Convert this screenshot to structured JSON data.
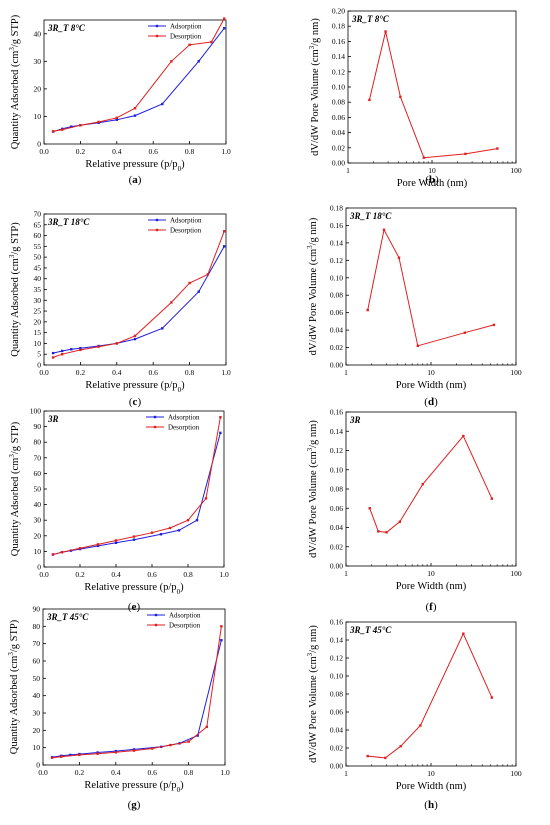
{
  "colors": {
    "adsorption": "#1f1fe0",
    "desorption": "#e01f1f",
    "axis": "#000000"
  },
  "chart_data": [
    {
      "id": "a",
      "type": "line",
      "panel_label": "(a)",
      "annotation": "3R_T 8°C",
      "xlabel": "Relative pressure (p/p0)",
      "ylabel": "Quantity Adsorbed (cm3/g STP)",
      "xlim": [
        0,
        1
      ],
      "ylim": [
        0,
        45
      ],
      "xticks": [
        0.0,
        0.2,
        0.4,
        0.6,
        0.8,
        1.0
      ],
      "xtick_labels": [
        "0.0",
        "0.2",
        "0.4",
        "0.6",
        "0.8",
        "1.0"
      ],
      "yticks": [
        0,
        10,
        20,
        30,
        40
      ],
      "ytick_labels": [
        "0",
        "10",
        "20",
        "30",
        "40"
      ],
      "legend": "top-right",
      "series": [
        {
          "name": "Adsorption",
          "color": "blue",
          "x": [
            0.05,
            0.1,
            0.15,
            0.2,
            0.3,
            0.4,
            0.5,
            0.65,
            0.85,
            0.99
          ],
          "y": [
            4.5,
            5.5,
            6.3,
            6.8,
            7.7,
            8.8,
            10.3,
            14.5,
            30,
            42
          ]
        },
        {
          "name": "Desorption",
          "color": "red",
          "x": [
            0.99,
            0.92,
            0.8,
            0.7,
            0.5,
            0.4,
            0.3,
            0.2,
            0.1,
            0.05
          ],
          "y": [
            45.5,
            37,
            36,
            30,
            13,
            9.5,
            8,
            6.8,
            5.2,
            4.6
          ]
        }
      ]
    },
    {
      "id": "b",
      "type": "line",
      "panel_label": "(b)",
      "annotation": "3R_T 8°C",
      "xlabel": "Pore Width (nm)",
      "ylabel": "dV/dW Pore Volume (cm3/g nm)",
      "xscale": "log",
      "xlim": [
        1,
        100
      ],
      "ylim": [
        0,
        0.2
      ],
      "xticks": [
        1,
        10,
        100
      ],
      "xtick_labels": [
        "1",
        "10",
        "100"
      ],
      "yticks": [
        0,
        0.02,
        0.04,
        0.06,
        0.08,
        0.1,
        0.12,
        0.14,
        0.16,
        0.18,
        0.2
      ],
      "ytick_labels": [
        "0.00",
        "0.02",
        "0.04",
        "0.06",
        "0.08",
        "0.10",
        "0.12",
        "0.14",
        "0.16",
        "0.18",
        "0.20"
      ],
      "series": [
        {
          "color": "red",
          "x": [
            1.8,
            2.8,
            4.2,
            8.0,
            25,
            60
          ],
          "y": [
            0.083,
            0.173,
            0.087,
            0.007,
            0.012,
            0.019
          ]
        }
      ]
    },
    {
      "id": "c",
      "type": "line",
      "panel_label": "(c)",
      "annotation": "3R_T 18°C",
      "xlabel": "Relative pressure (p/p0)",
      "ylabel": "Quantity Adsorbed (cm3/g STP)",
      "xlim": [
        0,
        1
      ],
      "ylim": [
        0,
        70
      ],
      "xticks": [
        0.0,
        0.2,
        0.4,
        0.6,
        0.8,
        1.0
      ],
      "xtick_labels": [
        "0.0",
        "0.2",
        "0.4",
        "0.6",
        "0.8",
        "1.0"
      ],
      "yticks": [
        0,
        5,
        10,
        15,
        20,
        25,
        30,
        35,
        40,
        45,
        50,
        55,
        60,
        65,
        70
      ],
      "ytick_labels": [
        "0",
        "5",
        "10",
        "15",
        "20",
        "25",
        "30",
        "35",
        "40",
        "45",
        "50",
        "55",
        "60",
        "65",
        "70"
      ],
      "legend": "top-right",
      "series": [
        {
          "name": "Adsorption",
          "color": "blue",
          "x": [
            0.05,
            0.1,
            0.15,
            0.2,
            0.3,
            0.4,
            0.5,
            0.65,
            0.85,
            0.99
          ],
          "y": [
            5.5,
            6.5,
            7.3,
            7.8,
            8.8,
            10.0,
            12.0,
            17,
            34,
            55
          ]
        },
        {
          "name": "Desorption",
          "color": "red",
          "x": [
            0.99,
            0.9,
            0.8,
            0.7,
            0.5,
            0.4,
            0.3,
            0.2,
            0.1,
            0.05
          ],
          "y": [
            62,
            42,
            38,
            29,
            13.5,
            10.0,
            8.5,
            7.0,
            5.0,
            3.5
          ]
        }
      ]
    },
    {
      "id": "d",
      "type": "line",
      "panel_label": "(d)",
      "annotation": "3R_T 18°C",
      "xlabel": "Pore Width (nm)",
      "ylabel": "dV/dW Pore Volume (cm3/g nm)",
      "xscale": "log",
      "xlim": [
        1,
        100
      ],
      "ylim": [
        0,
        0.18
      ],
      "xticks": [
        1,
        10,
        100
      ],
      "xtick_labels": [
        "1",
        "10",
        "100"
      ],
      "yticks": [
        0,
        0.02,
        0.04,
        0.06,
        0.08,
        0.1,
        0.12,
        0.14,
        0.16,
        0.18
      ],
      "ytick_labels": [
        "0.00",
        "0.02",
        "0.04",
        "0.06",
        "0.08",
        "0.10",
        "0.12",
        "0.14",
        "0.16",
        "0.18"
      ],
      "series": [
        {
          "color": "red",
          "x": [
            1.8,
            2.8,
            4.2,
            7.0,
            25,
            55
          ],
          "y": [
            0.063,
            0.155,
            0.123,
            0.022,
            0.037,
            0.046
          ]
        }
      ]
    },
    {
      "id": "e",
      "type": "line",
      "panel_label": "(e)",
      "annotation": "3R",
      "xlabel": "Relative pressure (p/p0)",
      "ylabel": "Quantity Adsorbed (cm3/g STP)",
      "xlim": [
        0,
        1
      ],
      "ylim": [
        0,
        100
      ],
      "xticks": [
        0.0,
        0.2,
        0.4,
        0.6,
        0.8,
        1.0
      ],
      "xtick_labels": [
        "0.0",
        "0.2",
        "0.4",
        "0.6",
        "0.8",
        "1.0"
      ],
      "yticks": [
        0,
        10,
        20,
        30,
        40,
        50,
        60,
        70,
        80,
        90,
        100
      ],
      "ytick_labels": [
        "0",
        "10",
        "20",
        "30",
        "40",
        "50",
        "60",
        "70",
        "80",
        "90",
        "100"
      ],
      "legend": "top-right",
      "series": [
        {
          "name": "Adsorption",
          "color": "blue",
          "x": [
            0.05,
            0.1,
            0.15,
            0.2,
            0.3,
            0.4,
            0.5,
            0.65,
            0.75,
            0.85,
            0.98
          ],
          "y": [
            8,
            9.5,
            10.5,
            11.5,
            13.5,
            15.5,
            17.5,
            21,
            23.5,
            30,
            86
          ]
        },
        {
          "name": "Desorption",
          "color": "red",
          "x": [
            0.98,
            0.9,
            0.8,
            0.7,
            0.6,
            0.5,
            0.4,
            0.3,
            0.2,
            0.1,
            0.05
          ],
          "y": [
            96,
            44,
            30,
            25,
            22,
            19.5,
            17,
            14.5,
            12,
            9.5,
            8
          ]
        }
      ]
    },
    {
      "id": "f",
      "type": "line",
      "panel_label": "(f)",
      "annotation": "3R",
      "xlabel": "Pore Width (nm)",
      "ylabel": "dV/dW Pore Volume (cm3/g nm)",
      "xscale": "log",
      "xlim": [
        1,
        100
      ],
      "ylim": [
        0,
        0.16
      ],
      "xticks": [
        1,
        10,
        100
      ],
      "xtick_labels": [
        "1",
        "10",
        "100"
      ],
      "yticks": [
        0,
        0.02,
        0.04,
        0.06,
        0.08,
        0.1,
        0.12,
        0.14,
        0.16
      ],
      "ytick_labels": [
        "0.00",
        "0.02",
        "0.04",
        "0.06",
        "0.08",
        "0.10",
        "0.12",
        "0.14",
        "0.16"
      ],
      "series": [
        {
          "color": "red",
          "x": [
            1.9,
            2.4,
            3.0,
            4.3,
            8.0,
            24,
            52
          ],
          "y": [
            0.06,
            0.036,
            0.035,
            0.046,
            0.085,
            0.135,
            0.07
          ]
        }
      ]
    },
    {
      "id": "g",
      "type": "line",
      "panel_label": "(g)",
      "annotation": "3R_T 45°C",
      "xlabel": "Relative pressure (p/p0)",
      "ylabel": "Quantity Adsorbed (cm3/g STP)",
      "xlim": [
        0,
        1
      ],
      "ylim": [
        0,
        90
      ],
      "xticks": [
        0.0,
        0.2,
        0.4,
        0.6,
        0.8,
        1.0
      ],
      "xtick_labels": [
        "0.0",
        "0.2",
        "0.4",
        "0.6",
        "0.8",
        "1.0"
      ],
      "yticks": [
        0,
        10,
        20,
        30,
        40,
        50,
        60,
        70,
        80,
        90
      ],
      "ytick_labels": [
        "0",
        "10",
        "20",
        "30",
        "40",
        "50",
        "60",
        "70",
        "80",
        "90"
      ],
      "legend": "top-right",
      "series": [
        {
          "name": "Adsorption",
          "color": "blue",
          "x": [
            0.05,
            0.1,
            0.15,
            0.2,
            0.3,
            0.4,
            0.5,
            0.65,
            0.75,
            0.85,
            0.98
          ],
          "y": [
            4.5,
            5.3,
            5.8,
            6.3,
            7.2,
            8.0,
            9.0,
            10.5,
            12.5,
            17,
            72
          ]
        },
        {
          "name": "Desorption",
          "color": "red",
          "x": [
            0.98,
            0.9,
            0.8,
            0.7,
            0.6,
            0.5,
            0.4,
            0.3,
            0.2,
            0.1,
            0.05
          ],
          "y": [
            80,
            22,
            13.5,
            11.5,
            9.5,
            8.3,
            7.3,
            6.5,
            5.8,
            4.8,
            4.2
          ]
        }
      ]
    },
    {
      "id": "h",
      "type": "line",
      "panel_label": "(h)",
      "annotation": "3R_T 45°C",
      "xlabel": "Pore Width (nm)",
      "ylabel": "dV/dW Pore Volume (cm3/g nm)",
      "xscale": "log",
      "xlim": [
        1,
        100
      ],
      "ylim": [
        0,
        0.16
      ],
      "xticks": [
        1,
        10,
        100
      ],
      "xtick_labels": [
        "1",
        "10",
        "100"
      ],
      "yticks": [
        0,
        0.02,
        0.04,
        0.06,
        0.08,
        0.1,
        0.12,
        0.14,
        0.16
      ],
      "ytick_labels": [
        "0.00",
        "0.02",
        "0.04",
        "0.06",
        "0.08",
        "0.10",
        "0.12",
        "0.14",
        "0.16"
      ],
      "series": [
        {
          "color": "red",
          "x": [
            1.8,
            2.9,
            4.4,
            7.5,
            24,
            52
          ],
          "y": [
            0.011,
            0.009,
            0.022,
            0.045,
            0.147,
            0.076
          ]
        }
      ]
    }
  ]
}
